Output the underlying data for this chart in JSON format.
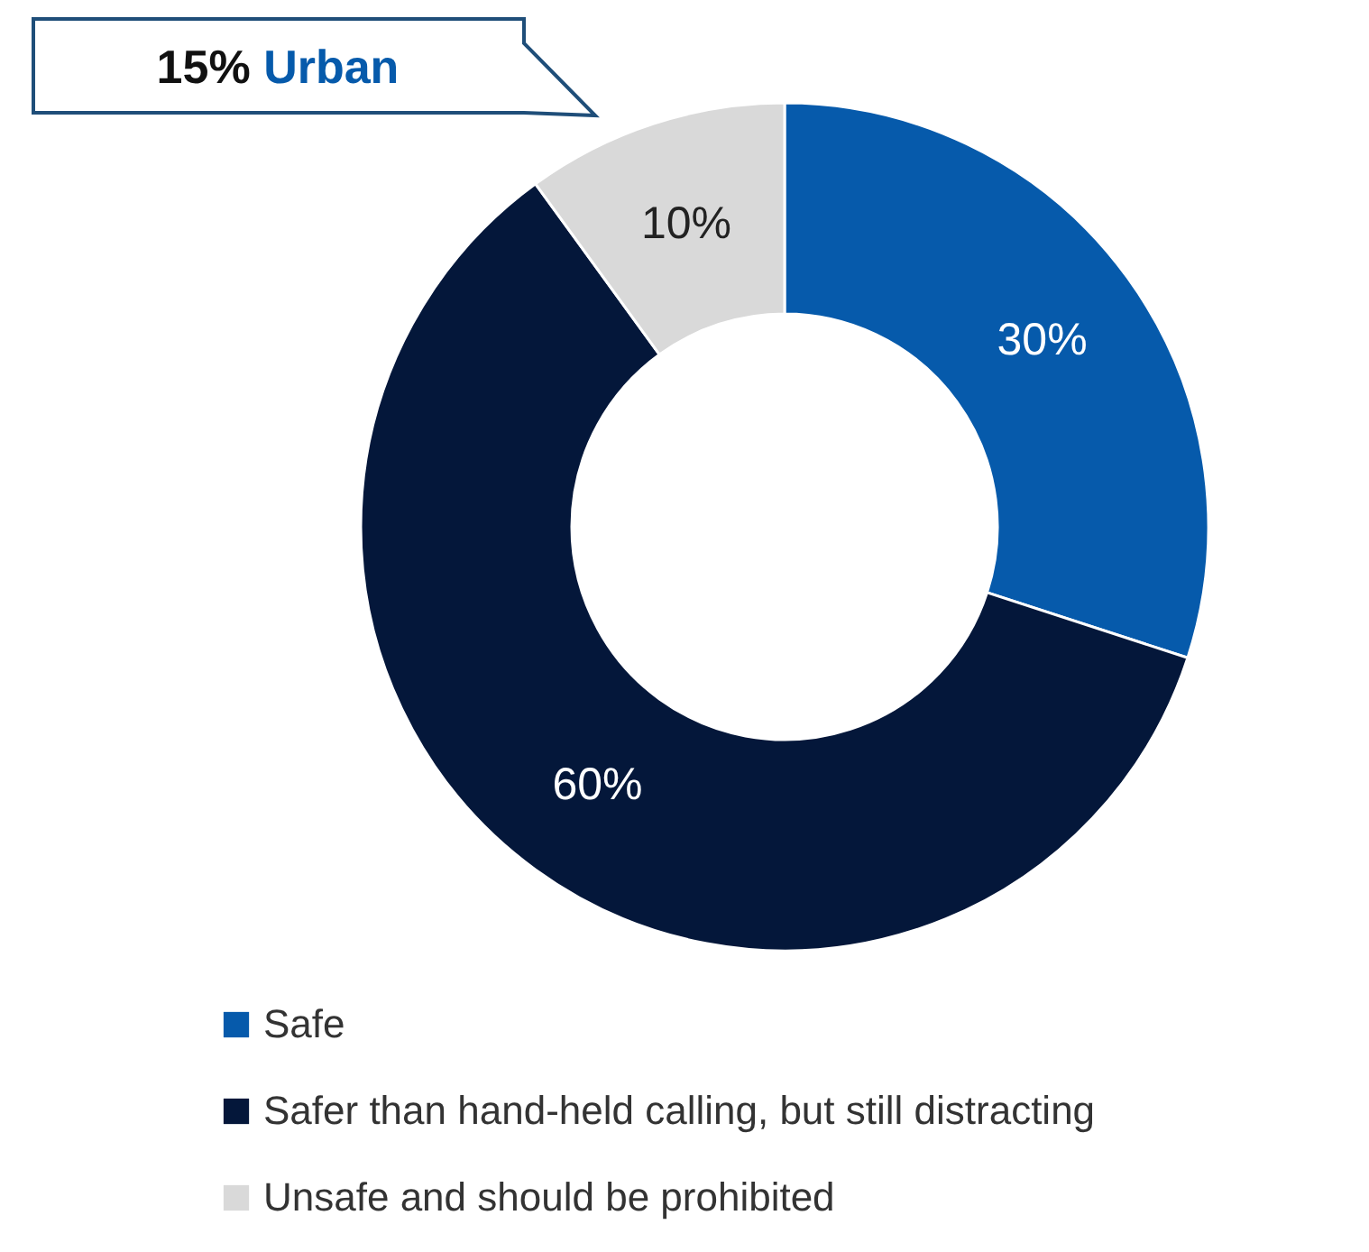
{
  "chart_data": {
    "type": "donut",
    "title": "15% Urban",
    "categories": [
      "Safe",
      "Safer than hand-held calling, but still distracting",
      "Unsafe and should be prohibited"
    ],
    "values": [
      30,
      60,
      10
    ],
    "colors": [
      "#065aab",
      "#04173a",
      "#d9d9d9"
    ],
    "value_labels": [
      "30%",
      "60%",
      "10%"
    ],
    "legend": "bottom"
  }
}
